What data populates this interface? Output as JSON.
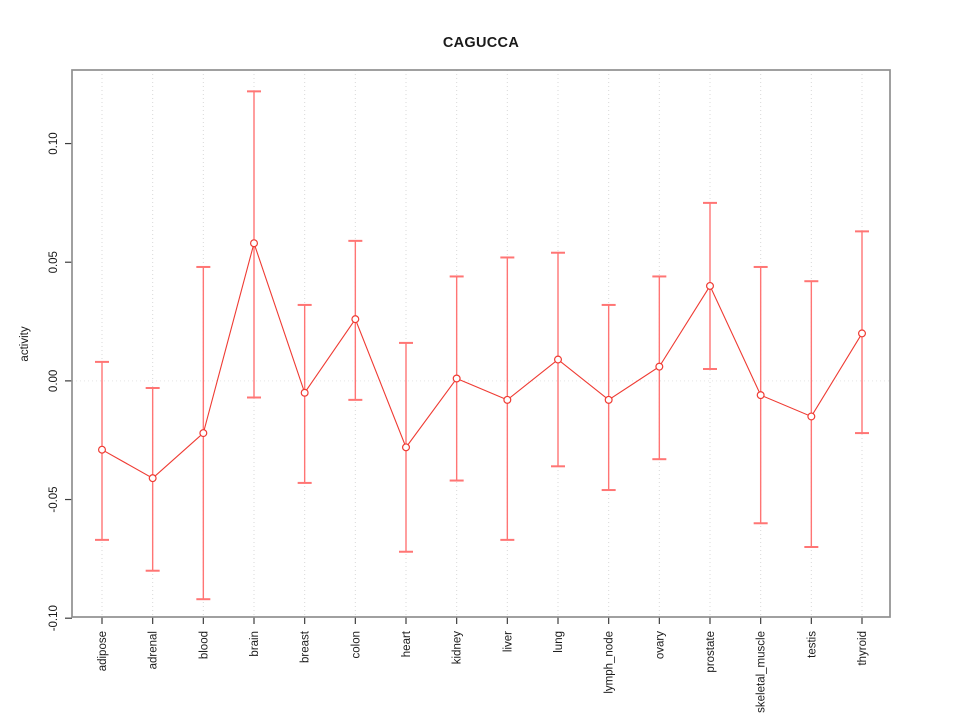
{
  "figure": {
    "title": "CAGUCCA",
    "y_axis_label": "activity"
  },
  "chart_data": {
    "type": "line",
    "title": "CAGUCCA",
    "xlabel": "",
    "ylabel": "activity",
    "categories": [
      "adipose",
      "adrenal",
      "blood",
      "brain",
      "breast",
      "colon",
      "heart",
      "kidney",
      "liver",
      "lung",
      "lymph_node",
      "ovary",
      "prostate",
      "skeletal_muscle",
      "testis",
      "thyroid"
    ],
    "series": [
      {
        "name": "activity",
        "marker": "open-circle",
        "values": [
          -0.029,
          -0.041,
          -0.022,
          0.058,
          -0.005,
          0.026,
          -0.028,
          0.001,
          -0.008,
          0.009,
          -0.008,
          0.006,
          0.04,
          -0.006,
          -0.015,
          0.02
        ],
        "error_upper": [
          0.008,
          -0.003,
          0.048,
          0.122,
          0.032,
          0.059,
          0.016,
          0.044,
          0.052,
          0.054,
          0.032,
          0.044,
          0.075,
          0.048,
          0.042,
          0.063
        ],
        "error_lower": [
          -0.067,
          -0.08,
          -0.092,
          -0.007,
          -0.043,
          -0.008,
          -0.072,
          -0.042,
          -0.067,
          -0.036,
          -0.046,
          -0.033,
          0.005,
          -0.06,
          -0.07,
          -0.022
        ]
      }
    ],
    "ylim": [
      -0.0995,
      0.131
    ],
    "yticks": [
      -0.1,
      -0.05,
      0.0,
      0.05,
      0.1
    ],
    "ytick_labels": [
      "-0.10",
      "-0.05",
      "0.00",
      "0.05",
      "0.10"
    ],
    "grid": {
      "vertical_dotted": true,
      "horizontal_zero_dotted": true
    },
    "legend": "none",
    "colors": {
      "series": "#ef3b33",
      "error_bar": "#ff7574",
      "grid": "#d9d9d9",
      "zero_line": "#e5e5e5",
      "frame": "#8f8f8f",
      "tick": "#3d3d3d",
      "text": "#1a1a1a",
      "background": "#ffffff"
    }
  }
}
